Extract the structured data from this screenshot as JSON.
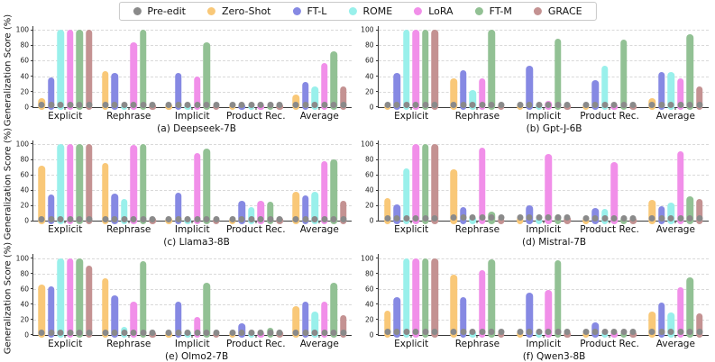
{
  "legend": {
    "items": [
      {
        "label": "Pre-edit",
        "color": "#8a8a8a"
      },
      {
        "label": "Zero-Shot",
        "color": "#F9C878"
      },
      {
        "label": "FT-L",
        "color": "#8689E3"
      },
      {
        "label": "ROME",
        "color": "#99F0EB"
      },
      {
        "label": "LoRA",
        "color": "#F18FE9"
      },
      {
        "label": "FT-M",
        "color": "#92C194"
      },
      {
        "label": "GRACE",
        "color": "#C49292"
      }
    ]
  },
  "axes": {
    "ylabel": "Generalization Score (%)",
    "yticks": [
      0,
      20,
      40,
      60,
      80,
      100
    ],
    "ymax": 105,
    "categories": [
      "Explicit",
      "Rephrase",
      "Implicit",
      "Product Rec.",
      "Average"
    ]
  },
  "chart_data": [
    {
      "type": "bar",
      "caption": "(a) Deepseek-7B",
      "categories": [
        "Explicit",
        "Rephrase",
        "Implicit",
        "Product Rec.",
        "Average"
      ],
      "pre_edit": [
        3,
        3,
        3,
        3,
        3
      ],
      "series": [
        {
          "name": "Zero-Shot",
          "values": [
            11,
            47,
            2,
            2,
            16
          ]
        },
        {
          "name": "FT-L",
          "values": [
            38,
            44,
            44,
            2,
            32
          ]
        },
        {
          "name": "ROME",
          "values": [
            100,
            2,
            2,
            2,
            27
          ]
        },
        {
          "name": "LoRA",
          "values": [
            100,
            84,
            40,
            2,
            57
          ]
        },
        {
          "name": "FT-M",
          "values": [
            100,
            100,
            84,
            2,
            72
          ]
        },
        {
          "name": "GRACE",
          "values": [
            100,
            2,
            2,
            2,
            27
          ]
        }
      ]
    },
    {
      "type": "bar",
      "caption": "(b) Gpt-J-6B",
      "categories": [
        "Explicit",
        "Rephrase",
        "Implicit",
        "Product Rec.",
        "Average"
      ],
      "pre_edit": [
        3,
        3,
        3,
        3,
        3
      ],
      "series": [
        {
          "name": "Zero-Shot",
          "values": [
            2,
            37,
            2,
            2,
            11
          ]
        },
        {
          "name": "FT-L",
          "values": [
            44,
            48,
            54,
            35,
            45
          ]
        },
        {
          "name": "ROME",
          "values": [
            100,
            22,
            5,
            53,
            45
          ]
        },
        {
          "name": "LoRA",
          "values": [
            100,
            37,
            8,
            2,
            37
          ]
        },
        {
          "name": "FT-M",
          "values": [
            100,
            100,
            89,
            88,
            94
          ]
        },
        {
          "name": "GRACE",
          "values": [
            100,
            3,
            2,
            3,
            27
          ]
        }
      ]
    },
    {
      "type": "bar",
      "caption": "(c) Llama3-8B",
      "categories": [
        "Explicit",
        "Rephrase",
        "Implicit",
        "Product Rec.",
        "Average"
      ],
      "pre_edit": [
        2,
        2,
        2,
        2,
        2
      ],
      "series": [
        {
          "name": "Zero-Shot",
          "values": [
            72,
            75,
            3,
            2,
            38
          ]
        },
        {
          "name": "FT-L",
          "values": [
            34,
            36,
            37,
            26,
            33
          ]
        },
        {
          "name": "ROME",
          "values": [
            100,
            29,
            5,
            18,
            38
          ]
        },
        {
          "name": "LoRA",
          "values": [
            100,
            99,
            88,
            26,
            78
          ]
        },
        {
          "name": "FT-M",
          "values": [
            100,
            100,
            94,
            25,
            80
          ]
        },
        {
          "name": "GRACE",
          "values": [
            100,
            2,
            2,
            2,
            26
          ]
        }
      ]
    },
    {
      "type": "bar",
      "caption": "(d) Mistral-7B",
      "categories": [
        "Explicit",
        "Rephrase",
        "Implicit",
        "Product Rec.",
        "Average"
      ],
      "pre_edit": [
        3,
        4,
        4,
        3,
        3
      ],
      "series": [
        {
          "name": "Zero-Shot",
          "values": [
            30,
            67,
            6,
            3,
            27
          ]
        },
        {
          "name": "FT-L",
          "values": [
            21,
            18,
            20,
            17,
            19
          ]
        },
        {
          "name": "ROME",
          "values": [
            68,
            6,
            4,
            16,
            24
          ]
        },
        {
          "name": "LoRA",
          "values": [
            100,
            95,
            87,
            76,
            90
          ]
        },
        {
          "name": "FT-M",
          "values": [
            100,
            12,
            9,
            6,
            32
          ]
        },
        {
          "name": "GRACE",
          "values": [
            100,
            3,
            6,
            3,
            28
          ]
        }
      ]
    },
    {
      "type": "bar",
      "caption": "(e) Olmo2-7B",
      "categories": [
        "Explicit",
        "Rephrase",
        "Implicit",
        "Product Rec.",
        "Average"
      ],
      "pre_edit": [
        3,
        3,
        3,
        3,
        3
      ],
      "series": [
        {
          "name": "Zero-Shot",
          "values": [
            65,
            74,
            4,
            3,
            37
          ]
        },
        {
          "name": "FT-L",
          "values": [
            63,
            52,
            43,
            15,
            43
          ]
        },
        {
          "name": "ROME",
          "values": [
            100,
            10,
            6,
            6,
            31
          ]
        },
        {
          "name": "LoRA",
          "values": [
            100,
            43,
            24,
            5,
            43
          ]
        },
        {
          "name": "FT-M",
          "values": [
            100,
            96,
            68,
            9,
            68
          ]
        },
        {
          "name": "GRACE",
          "values": [
            90,
            4,
            4,
            6,
            26
          ]
        }
      ]
    },
    {
      "type": "bar",
      "caption": "(f) Qwen3-8B",
      "categories": [
        "Explicit",
        "Rephrase",
        "Implicit",
        "Product Rec.",
        "Average"
      ],
      "pre_edit": [
        4,
        4,
        4,
        4,
        4
      ],
      "series": [
        {
          "name": "Zero-Shot",
          "values": [
            32,
            79,
            6,
            4,
            30
          ]
        },
        {
          "name": "FT-L",
          "values": [
            49,
            49,
            55,
            16,
            42
          ]
        },
        {
          "name": "ROME",
          "values": [
            100,
            6,
            7,
            4,
            29
          ]
        },
        {
          "name": "LoRA",
          "values": [
            100,
            84,
            59,
            4,
            62
          ]
        },
        {
          "name": "FT-M",
          "values": [
            100,
            98,
            97,
            4,
            75
          ]
        },
        {
          "name": "GRACE",
          "values": [
            100,
            3,
            4,
            4,
            28
          ]
        }
      ]
    }
  ]
}
